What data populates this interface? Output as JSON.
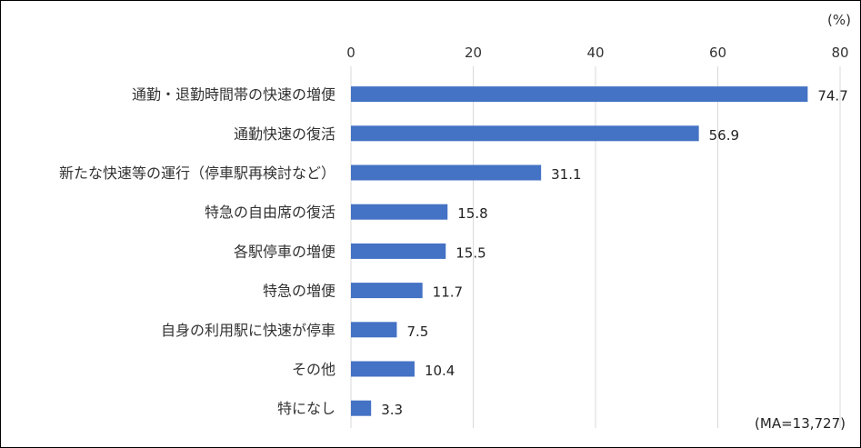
{
  "chart_data": {
    "type": "bar",
    "orientation": "horizontal",
    "unit_label": "(%)",
    "sample_note": "(MA=13,727)",
    "xlim": [
      0,
      80
    ],
    "xticks": [
      0,
      20,
      40,
      60,
      80
    ],
    "axis_position": "top",
    "grid": true,
    "bar_color": "#4472C4",
    "categories": [
      "通勤・退勤時間帯の快速の増便",
      "通勤快速の復活",
      "新たな快速等の運行（停車駅再検討など）",
      "特急の自由席の復活",
      "各駅停車の増便",
      "特急の増便",
      "自身の利用駅に快速が停車",
      "その他",
      "特になし"
    ],
    "values": [
      74.7,
      56.9,
      31.1,
      15.8,
      15.5,
      11.7,
      7.5,
      10.4,
      3.3
    ]
  }
}
